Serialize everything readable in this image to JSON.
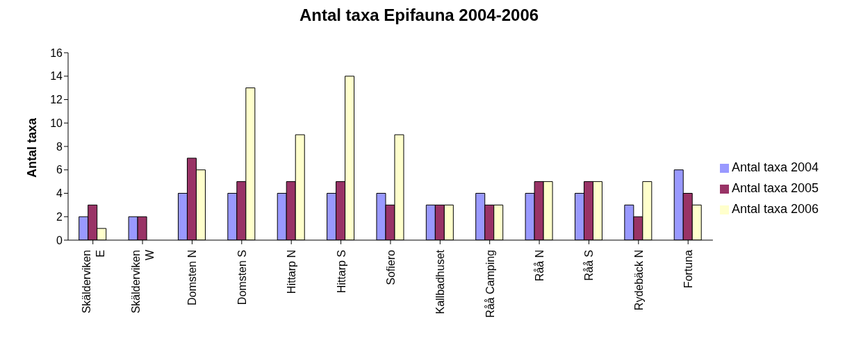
{
  "chart_data": {
    "type": "bar",
    "title": "Antal taxa Epifauna 2004-2006",
    "ylabel": "Antal taxa",
    "categories": [
      "Skälderviken E",
      "Skälderviken W",
      "Domsten N",
      "Domsten S",
      "Hittarp N",
      "Hittarp S",
      "Sofiero",
      "Kallbadhuset",
      "Råå Camping",
      "Råå N",
      "Råå S",
      "Rydebäck N",
      "Fortuna"
    ],
    "series": [
      {
        "name": "Antal taxa 2004",
        "color": "#9999ff",
        "values": [
          2,
          2,
          4,
          4,
          4,
          4,
          4,
          3,
          4,
          4,
          4,
          3,
          6
        ]
      },
      {
        "name": "Antal taxa 2005",
        "color": "#993366",
        "values": [
          3,
          2,
          7,
          5,
          5,
          5,
          3,
          3,
          3,
          5,
          5,
          2,
          4
        ]
      },
      {
        "name": "Antal taxa 2006",
        "color": "#ffffcc",
        "values": [
          1,
          0,
          6,
          13,
          9,
          14,
          9,
          3,
          3,
          5,
          5,
          5,
          3
        ]
      }
    ],
    "ylim": [
      0,
      16
    ],
    "yticks": [
      0,
      2,
      4,
      6,
      8,
      10,
      12,
      14,
      16
    ],
    "grid": false,
    "legend": "right"
  }
}
